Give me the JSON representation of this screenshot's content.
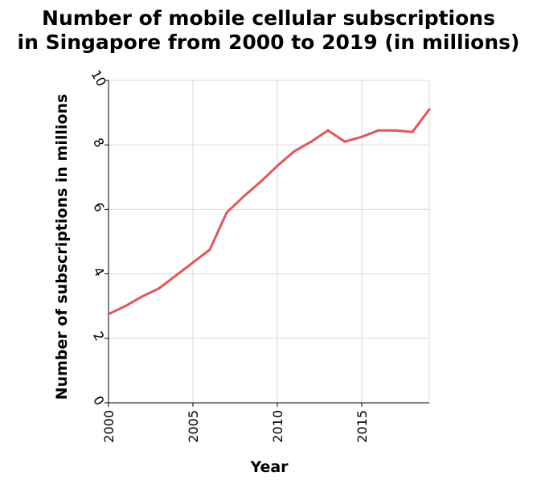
{
  "chart_data": {
    "type": "line",
    "title_lines": [
      "Number of mobile cellular subscriptions",
      "in Singapore from 2000 to 2019 (in millions)"
    ],
    "xlabel": "Year",
    "ylabel": "Number of subscriptions in millions",
    "xlim": [
      2000,
      2019
    ],
    "ylim": [
      0,
      10
    ],
    "x_ticks": [
      2000,
      2005,
      2010,
      2015
    ],
    "x_tick_labels": [
      "2000",
      "2005",
      "2010",
      "2015"
    ],
    "y_ticks": [
      0,
      2,
      4,
      6,
      8,
      10
    ],
    "y_tick_labels": [
      "0",
      "2",
      "4",
      "6",
      "8",
      "10"
    ],
    "grid": true,
    "series": [
      {
        "color": "#e15759",
        "x": [
          2000,
          2001,
          2002,
          2003,
          2004,
          2005,
          2006,
          2007,
          2008,
          2009,
          2010,
          2011,
          2012,
          2013,
          2014,
          2015,
          2016,
          2017,
          2018,
          2019
        ],
        "y": [
          2.75,
          3.0,
          3.3,
          3.55,
          3.95,
          4.35,
          4.75,
          5.9,
          6.4,
          6.85,
          7.35,
          7.8,
          8.1,
          8.45,
          8.1,
          8.25,
          8.45,
          8.45,
          8.4,
          9.1
        ]
      }
    ]
  }
}
